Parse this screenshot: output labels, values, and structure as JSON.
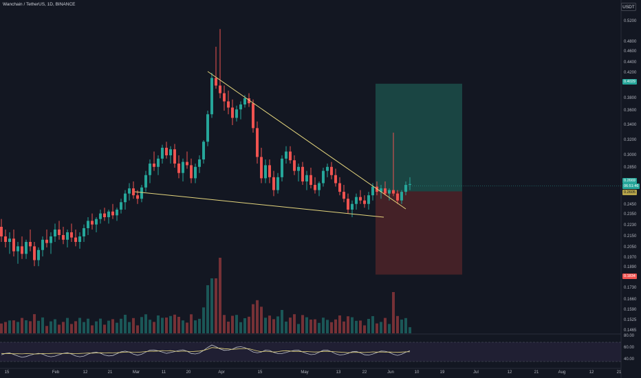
{
  "header": {
    "symbol_title": "Wanchain / TetherUS, 1D, BINANCE",
    "currency_button": "USDT"
  },
  "price_axis": {
    "ticks": [
      "0.5200",
      "0.4800",
      "0.4600",
      "0.4400",
      "0.4200",
      "0.3800",
      "0.3600",
      "0.3400",
      "0.3200",
      "0.3000",
      "0.2850",
      "0.2720",
      "0.2450",
      "0.2350",
      "0.2230",
      "0.2150",
      "0.2050",
      "0.1970",
      "0.1890",
      "0.1730",
      "0.1660",
      "0.1590",
      "0.1525",
      "0.1465"
    ],
    "badges": {
      "target": "0.4029",
      "last_price": "0.2669",
      "countdown": "06:51:46",
      "entry": "0.2605",
      "stop": "0.1834"
    }
  },
  "time_axis": {
    "ticks": [
      "15",
      "Feb",
      "12",
      "21",
      "Mar",
      "11",
      "20",
      "Apr",
      "15",
      "May",
      "13",
      "22",
      "Jun",
      "10",
      "19",
      "Jul",
      "12",
      "21",
      "Aug",
      "12",
      "21"
    ]
  },
  "rsi_axis": {
    "ticks": [
      "80.00",
      "60.00",
      "40.00"
    ]
  },
  "colors": {
    "background": "#131722",
    "up": "#26a69a",
    "down": "#ef5350",
    "trendline": "#e6d77e",
    "target_zone": "#1c4a47",
    "stop_zone": "#4a2228",
    "rsi_line": "#c3c6ce",
    "rsi_ma": "#e6d77e",
    "rsi_band": "#2a2540"
  },
  "chart_data": {
    "type": "candlestick",
    "x_axis": "date",
    "y_unit": "USDT",
    "candles_ohlc": [
      [
        0.222,
        0.23,
        0.21,
        0.215
      ],
      [
        0.215,
        0.22,
        0.205,
        0.21
      ],
      [
        0.21,
        0.218,
        0.2,
        0.213
      ],
      [
        0.213,
        0.22,
        0.198,
        0.202
      ],
      [
        0.202,
        0.21,
        0.192,
        0.206
      ],
      [
        0.206,
        0.215,
        0.196,
        0.2
      ],
      [
        0.2,
        0.212,
        0.196,
        0.21
      ],
      [
        0.21,
        0.22,
        0.202,
        0.206
      ],
      [
        0.206,
        0.21,
        0.19,
        0.195
      ],
      [
        0.195,
        0.205,
        0.19,
        0.203
      ],
      [
        0.203,
        0.215,
        0.198,
        0.212
      ],
      [
        0.212,
        0.22,
        0.205,
        0.209
      ],
      [
        0.209,
        0.218,
        0.2,
        0.215
      ],
      [
        0.215,
        0.225,
        0.21,
        0.22
      ],
      [
        0.22,
        0.228,
        0.212,
        0.216
      ],
      [
        0.216,
        0.222,
        0.208,
        0.212
      ],
      [
        0.212,
        0.22,
        0.205,
        0.218
      ],
      [
        0.218,
        0.225,
        0.21,
        0.214
      ],
      [
        0.214,
        0.22,
        0.206,
        0.21
      ],
      [
        0.21,
        0.218,
        0.204,
        0.215
      ],
      [
        0.215,
        0.224,
        0.21,
        0.221
      ],
      [
        0.221,
        0.232,
        0.216,
        0.228
      ],
      [
        0.228,
        0.236,
        0.22,
        0.224
      ],
      [
        0.224,
        0.232,
        0.218,
        0.23
      ],
      [
        0.23,
        0.24,
        0.225,
        0.236
      ],
      [
        0.236,
        0.242,
        0.228,
        0.232
      ],
      [
        0.232,
        0.24,
        0.225,
        0.238
      ],
      [
        0.238,
        0.246,
        0.23,
        0.234
      ],
      [
        0.234,
        0.242,
        0.228,
        0.24
      ],
      [
        0.24,
        0.252,
        0.236,
        0.248
      ],
      [
        0.248,
        0.262,
        0.24,
        0.258
      ],
      [
        0.258,
        0.27,
        0.25,
        0.264
      ],
      [
        0.264,
        0.272,
        0.252,
        0.256
      ],
      [
        0.256,
        0.262,
        0.246,
        0.252
      ],
      [
        0.252,
        0.268,
        0.248,
        0.265
      ],
      [
        0.265,
        0.282,
        0.26,
        0.278
      ],
      [
        0.278,
        0.295,
        0.27,
        0.29
      ],
      [
        0.29,
        0.305,
        0.282,
        0.286
      ],
      [
        0.286,
        0.3,
        0.278,
        0.296
      ],
      [
        0.296,
        0.314,
        0.29,
        0.31
      ],
      [
        0.31,
        0.318,
        0.296,
        0.3
      ],
      [
        0.3,
        0.312,
        0.29,
        0.308
      ],
      [
        0.308,
        0.315,
        0.285,
        0.29
      ],
      [
        0.29,
        0.3,
        0.275,
        0.28
      ],
      [
        0.28,
        0.296,
        0.272,
        0.292
      ],
      [
        0.292,
        0.305,
        0.284,
        0.288
      ],
      [
        0.288,
        0.296,
        0.27,
        0.275
      ],
      [
        0.275,
        0.29,
        0.27,
        0.286
      ],
      [
        0.286,
        0.3,
        0.28,
        0.295
      ],
      [
        0.295,
        0.32,
        0.29,
        0.318
      ],
      [
        0.318,
        0.36,
        0.312,
        0.355
      ],
      [
        0.355,
        0.42,
        0.35,
        0.412
      ],
      [
        0.412,
        0.47,
        0.395,
        0.4
      ],
      [
        0.4,
        0.505,
        0.38,
        0.388
      ],
      [
        0.388,
        0.4,
        0.36,
        0.375
      ],
      [
        0.375,
        0.392,
        0.355,
        0.365
      ],
      [
        0.365,
        0.378,
        0.34,
        0.35
      ],
      [
        0.35,
        0.368,
        0.345,
        0.362
      ],
      [
        0.362,
        0.375,
        0.348,
        0.37
      ],
      [
        0.37,
        0.385,
        0.365,
        0.38
      ],
      [
        0.38,
        0.388,
        0.366,
        0.372
      ],
      [
        0.372,
        0.378,
        0.33,
        0.336
      ],
      [
        0.336,
        0.345,
        0.29,
        0.298
      ],
      [
        0.298,
        0.31,
        0.27,
        0.275
      ],
      [
        0.275,
        0.295,
        0.27,
        0.288
      ],
      [
        0.288,
        0.295,
        0.27,
        0.276
      ],
      [
        0.276,
        0.282,
        0.255,
        0.262
      ],
      [
        0.262,
        0.28,
        0.258,
        0.276
      ],
      [
        0.276,
        0.3,
        0.272,
        0.296
      ],
      [
        0.296,
        0.312,
        0.29,
        0.305
      ],
      [
        0.305,
        0.312,
        0.29,
        0.294
      ],
      [
        0.294,
        0.3,
        0.278,
        0.282
      ],
      [
        0.282,
        0.29,
        0.272,
        0.286
      ],
      [
        0.286,
        0.292,
        0.268,
        0.272
      ],
      [
        0.272,
        0.282,
        0.262,
        0.278
      ],
      [
        0.278,
        0.285,
        0.264,
        0.268
      ],
      [
        0.268,
        0.276,
        0.258,
        0.262
      ],
      [
        0.262,
        0.272,
        0.255,
        0.27
      ],
      [
        0.27,
        0.285,
        0.266,
        0.282
      ],
      [
        0.282,
        0.29,
        0.276,
        0.286
      ],
      [
        0.286,
        0.292,
        0.274,
        0.278
      ],
      [
        0.278,
        0.284,
        0.266,
        0.27
      ],
      [
        0.27,
        0.276,
        0.256,
        0.26
      ],
      [
        0.26,
        0.268,
        0.248,
        0.252
      ],
      [
        0.252,
        0.258,
        0.236,
        0.24
      ],
      [
        0.24,
        0.25,
        0.232,
        0.246
      ],
      [
        0.246,
        0.258,
        0.24,
        0.254
      ],
      [
        0.254,
        0.262,
        0.246,
        0.25
      ],
      [
        0.25,
        0.256,
        0.242,
        0.246
      ],
      [
        0.246,
        0.26,
        0.24,
        0.256
      ],
      [
        0.256,
        0.27,
        0.25,
        0.266
      ],
      [
        0.266,
        0.272,
        0.256,
        0.26
      ],
      [
        0.26,
        0.268,
        0.252,
        0.264
      ],
      [
        0.264,
        0.272,
        0.256,
        0.258
      ],
      [
        0.258,
        0.264,
        0.25,
        0.262
      ],
      [
        0.262,
        0.33,
        0.255,
        0.258
      ],
      [
        0.258,
        0.262,
        0.246,
        0.25
      ],
      [
        0.25,
        0.262,
        0.246,
        0.26
      ],
      [
        0.26,
        0.272,
        0.256,
        0.268
      ],
      [
        0.268,
        0.276,
        0.262,
        0.269
      ]
    ]
  }
}
